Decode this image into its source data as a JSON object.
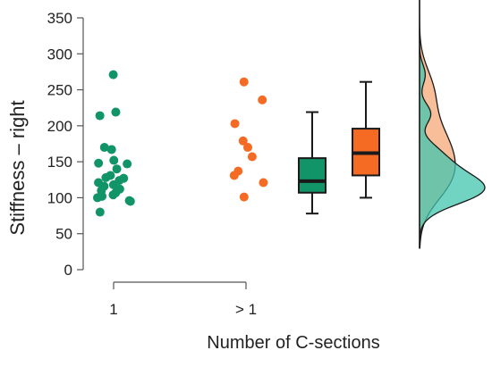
{
  "chart_data": {
    "type": "scatter",
    "subtype": "raincloud",
    "ylabel": "Stiffness – right",
    "xlabel": "Number of C-sections",
    "ylim": [
      0,
      350
    ],
    "yticks": [
      0,
      50,
      100,
      150,
      200,
      250,
      300,
      350
    ],
    "categories": [
      "1",
      "> 1"
    ],
    "grid": false,
    "legend": "none",
    "series": [
      {
        "category": "1",
        "color": "#119467",
        "points": [
          271,
          219,
          214,
          170,
          167,
          152,
          148,
          147,
          140,
          131,
          128,
          127,
          124,
          121,
          118,
          116,
          112,
          110,
          107,
          104,
          102,
          100,
          96,
          95,
          80
        ],
        "box": {
          "min": 78,
          "q1": 107,
          "median": 123,
          "q3": 155,
          "max": 219
        },
        "density_color": "#42c4ae"
      },
      {
        "category": "> 1",
        "color": "#f56b24",
        "points": [
          261,
          236,
          203,
          179,
          170,
          157,
          137,
          131,
          121,
          101
        ],
        "box": {
          "min": 100,
          "q1": 131,
          "median": 162,
          "q3": 196,
          "max": 261
        },
        "density_color": "#f6a878"
      }
    ]
  }
}
